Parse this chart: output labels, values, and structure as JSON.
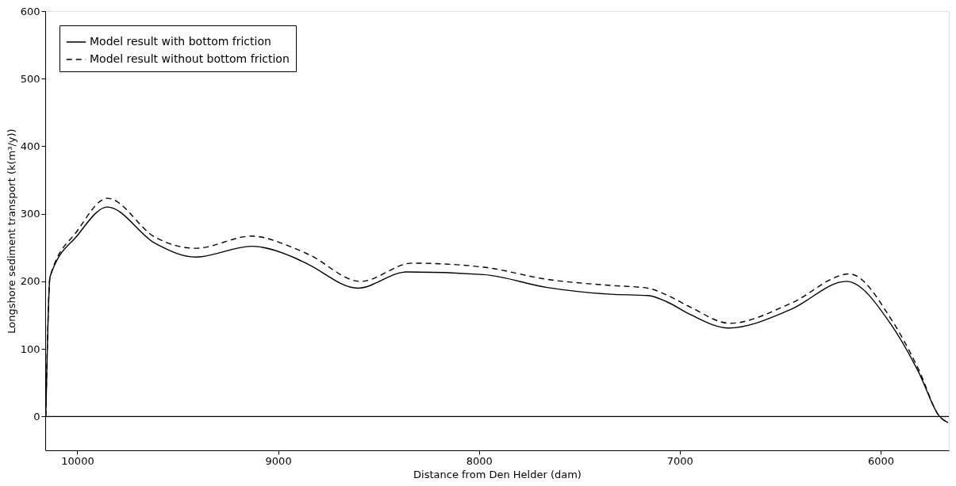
{
  "chart_data": {
    "type": "line",
    "xlabel": "Distance from Den Helder (dam)",
    "ylabel": "Longshore sediment transport (k(m³/y))",
    "xlim": [
      10160,
      5660
    ],
    "xticks": [
      10000,
      9000,
      8000,
      7000,
      6000
    ],
    "ylim": [
      -50,
      600
    ],
    "yticks": [
      0,
      100,
      200,
      300,
      400,
      500,
      600
    ],
    "grid": false,
    "legend": "top left",
    "marker": "none",
    "ref_lines": [
      {
        "axis": "y",
        "value": 0,
        "color": "#000000",
        "line_style": "solid"
      }
    ],
    "series": [
      {
        "name": "Model result with bottom friction",
        "color": "#000000",
        "line_style": "solid",
        "x": [
          10157,
          10136,
          10000,
          9850,
          9611,
          9410,
          9132,
          8927,
          8849,
          8604,
          8360,
          7976,
          7660,
          7344,
          7159,
          7066,
          6948,
          6757,
          6450,
          6171,
          5945,
          5811,
          5706,
          5664
        ],
        "values": [
          0,
          207,
          268,
          310,
          256,
          236,
          252,
          236,
          225,
          190,
          214,
          210,
          191,
          181,
          179,
          170,
          151,
          131,
          158,
          200,
          135,
          66,
          0,
          -9
        ]
      },
      {
        "name": "Model result without bottom friction",
        "color": "#000000",
        "line_style": "dashed",
        "x": [
          10157,
          10136,
          10000,
          9850,
          9611,
          9410,
          9132,
          8927,
          8849,
          8589,
          8333,
          7976,
          7660,
          7344,
          7159,
          7066,
          6948,
          6750,
          6450,
          6155,
          5945,
          5811,
          5706,
          5664
        ],
        "values": [
          0,
          207,
          275,
          323,
          265,
          249,
          267,
          250,
          240,
          200,
          227,
          221,
          203,
          194,
          190,
          180,
          162,
          138,
          167,
          211,
          143,
          70,
          0,
          -9
        ]
      }
    ]
  }
}
